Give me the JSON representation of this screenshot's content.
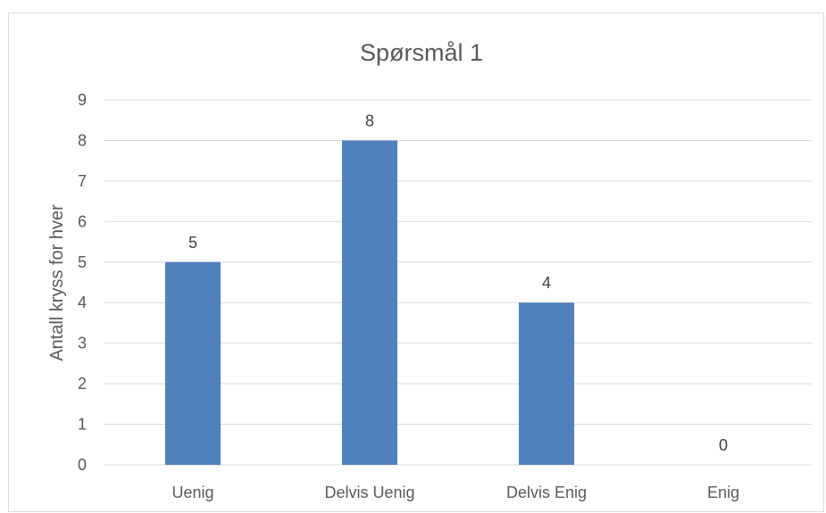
{
  "chart_data": {
    "type": "bar",
    "title": "Spørsmål 1",
    "xlabel": "",
    "ylabel": "Antall kryss for hver",
    "categories": [
      "Uenig",
      "Delvis Uenig",
      "Delvis Enig",
      "Enig"
    ],
    "values": [
      5,
      8,
      4,
      0
    ],
    "ylim": [
      0,
      9
    ],
    "yticks": [
      0,
      1,
      2,
      3,
      4,
      5,
      6,
      7,
      8,
      9
    ],
    "data_labels": true,
    "grid": true,
    "legend": "none",
    "bar_color": "#4f81bd",
    "grid_color": "#d9d9d9"
  }
}
